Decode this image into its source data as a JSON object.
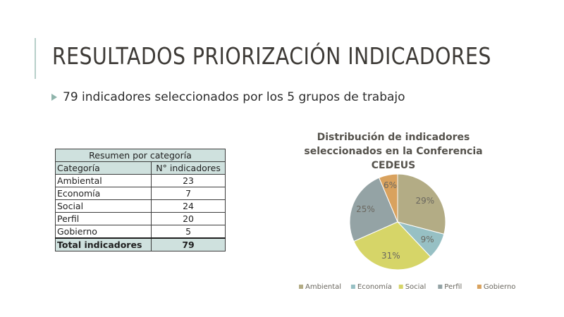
{
  "slide": {
    "title": "RESULTADOS PRIORIZACIÓN INDICADORES",
    "bullet": "79 indicadores seleccionados por los 5 grupos de trabajo",
    "accent_color": "#b7cfc9"
  },
  "table": {
    "caption": "Resumen por categoría",
    "headers": [
      "Categoría",
      "N° indicadores"
    ],
    "rows": [
      [
        "Ambiental",
        "23"
      ],
      [
        "Economía",
        "7"
      ],
      [
        "Social",
        "24"
      ],
      [
        "Perfil",
        "20"
      ],
      [
        "Gobierno",
        "5"
      ]
    ],
    "total": [
      "Total indicadores",
      "79"
    ]
  },
  "chart_data": {
    "type": "pie",
    "title": [
      "Distribución de indicadores",
      "seleccionados en la Conferencia",
      "CEDEUS"
    ],
    "categories": [
      "Ambiental",
      "Economía",
      "Social",
      "Perfil",
      "Gobierno"
    ],
    "values": [
      23,
      7,
      24,
      20,
      5
    ],
    "labels": [
      "29%",
      "9%",
      "31%",
      "25%",
      "6%"
    ],
    "colors": [
      "#b3ac85",
      "#97c0c4",
      "#d6d568",
      "#94a3a5",
      "#d9a25e"
    ],
    "legend": "bottom",
    "start_angle_deg": 0,
    "direction": "clockwise"
  }
}
